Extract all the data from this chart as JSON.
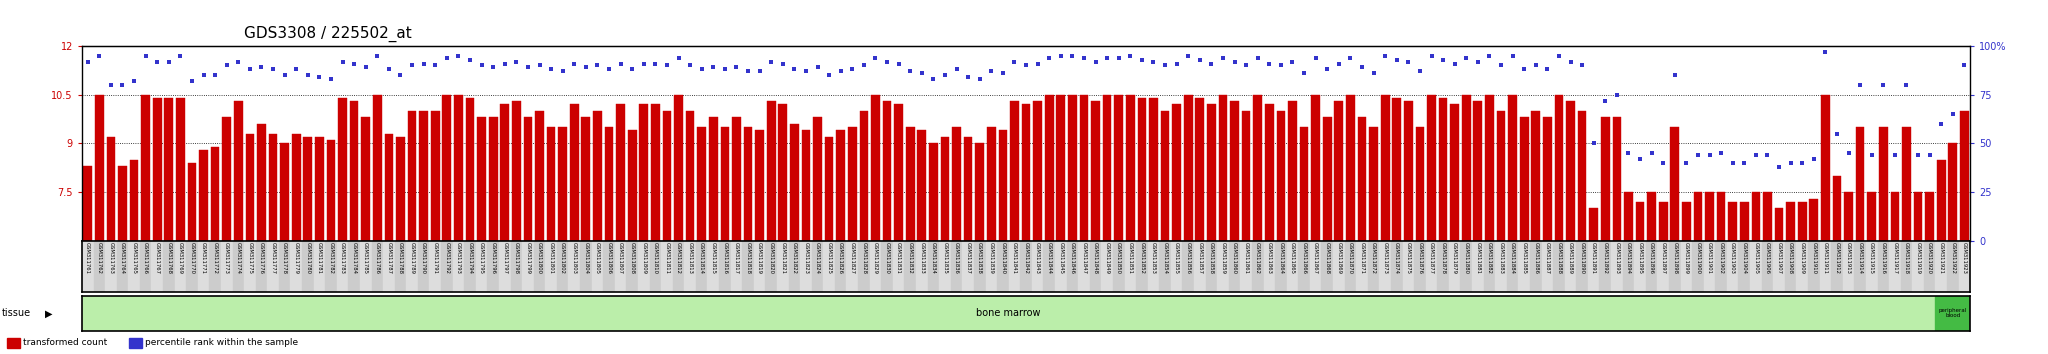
{
  "title": "GDS3308 / 225502_at",
  "title_fontsize": 11,
  "bar_color": "#cc0000",
  "dot_color": "#3333cc",
  "left_yaxis_label_color": "#cc0000",
  "right_yaxis_label_color": "#3333cc",
  "left_ylim": [
    6.0,
    12.0
  ],
  "left_yticks": [
    7.5,
    9.0,
    10.5,
    12.0
  ],
  "left_ytick_labels": [
    "7.5",
    "9",
    "10.5",
    "12"
  ],
  "right_ylim": [
    0,
    100
  ],
  "right_yticks": [
    0,
    25,
    50,
    75,
    100
  ],
  "right_ytick_labels": [
    "0",
    "25",
    "50",
    "75",
    "100%"
  ],
  "background_color": "#ffffff",
  "tissue_bar_color_main": "#bbeeaa",
  "tissue_bar_color_alt": "#44bb44",
  "tissue_label_main": "bone marrow",
  "tissue_label_alt": "peripheral\nblood",
  "xlabel_tissue": "tissue",
  "categories": [
    "GSM311761",
    "GSM311762",
    "GSM311763",
    "GSM311764",
    "GSM311765",
    "GSM311766",
    "GSM311767",
    "GSM311768",
    "GSM311769",
    "GSM311770",
    "GSM311771",
    "GSM311772",
    "GSM311773",
    "GSM311774",
    "GSM311775",
    "GSM311776",
    "GSM311777",
    "GSM311778",
    "GSM311779",
    "GSM311780",
    "GSM311781",
    "GSM311782",
    "GSM311783",
    "GSM311784",
    "GSM311785",
    "GSM311786",
    "GSM311787",
    "GSM311788",
    "GSM311789",
    "GSM311790",
    "GSM311791",
    "GSM311792",
    "GSM311793",
    "GSM311794",
    "GSM311795",
    "GSM311796",
    "GSM311797",
    "GSM311798",
    "GSM311799",
    "GSM311800",
    "GSM311801",
    "GSM311802",
    "GSM311803",
    "GSM311804",
    "GSM311805",
    "GSM311806",
    "GSM311807",
    "GSM311808",
    "GSM311809",
    "GSM311810",
    "GSM311811",
    "GSM311812",
    "GSM311813",
    "GSM311814",
    "GSM311815",
    "GSM311816",
    "GSM311817",
    "GSM311818",
    "GSM311819",
    "GSM311820",
    "GSM311821",
    "GSM311822",
    "GSM311823",
    "GSM311824",
    "GSM311825",
    "GSM311826",
    "GSM311827",
    "GSM311828",
    "GSM311829",
    "GSM311830",
    "GSM311831",
    "GSM311832",
    "GSM311833",
    "GSM311834",
    "GSM311835",
    "GSM311836",
    "GSM311837",
    "GSM311838",
    "GSM311839",
    "GSM311840",
    "GSM311841",
    "GSM311842",
    "GSM311843",
    "GSM311844",
    "GSM311845",
    "GSM311846",
    "GSM311847",
    "GSM311848",
    "GSM311849",
    "GSM311850",
    "GSM311851",
    "GSM311852",
    "GSM311853",
    "GSM311854",
    "GSM311855",
    "GSM311856",
    "GSM311857",
    "GSM311858",
    "GSM311859",
    "GSM311860",
    "GSM311861",
    "GSM311862",
    "GSM311863",
    "GSM311864",
    "GSM311865",
    "GSM311866",
    "GSM311867",
    "GSM311868",
    "GSM311869",
    "GSM311870",
    "GSM311871",
    "GSM311872",
    "GSM311873",
    "GSM311874",
    "GSM311875",
    "GSM311876",
    "GSM311877",
    "GSM311878",
    "GSM311879",
    "GSM311880",
    "GSM311881",
    "GSM311882",
    "GSM311883",
    "GSM311884",
    "GSM311885",
    "GSM311886",
    "GSM311887",
    "GSM311888",
    "GSM311889",
    "GSM311890",
    "GSM311891",
    "GSM311892",
    "GSM311893",
    "GSM311894",
    "GSM311895",
    "GSM311896",
    "GSM311897",
    "GSM311898",
    "GSM311899",
    "GSM311900",
    "GSM311901",
    "GSM311902",
    "GSM311903",
    "GSM311904",
    "GSM311905",
    "GSM311906",
    "GSM311907",
    "GSM311908",
    "GSM311909",
    "GSM311910",
    "GSM311911",
    "GSM311912",
    "GSM311913",
    "GSM311914",
    "GSM311915",
    "GSM311916",
    "GSM311917",
    "GSM311918",
    "GSM311919",
    "GSM311920",
    "GSM311921",
    "GSM311922",
    "GSM311923"
  ],
  "bar_values": [
    8.3,
    10.5,
    9.2,
    8.3,
    8.5,
    10.5,
    10.4,
    10.4,
    10.4,
    8.4,
    8.8,
    8.9,
    9.8,
    10.3,
    9.3,
    9.6,
    9.3,
    9.0,
    9.3,
    9.2,
    9.2,
    9.1,
    10.4,
    10.3,
    9.8,
    10.5,
    9.3,
    9.2,
    10.0,
    10.0,
    10.0,
    10.5,
    10.5,
    10.4,
    9.8,
    9.8,
    10.2,
    10.3,
    9.8,
    10.0,
    9.5,
    9.5,
    10.2,
    9.8,
    10.0,
    9.5,
    10.2,
    9.4,
    10.2,
    10.2,
    10.0,
    10.5,
    10.0,
    9.5,
    9.8,
    9.5,
    9.8,
    9.5,
    9.4,
    10.3,
    10.2,
    9.6,
    9.4,
    9.8,
    9.2,
    9.4,
    9.5,
    10.0,
    10.5,
    10.3,
    10.2,
    9.5,
    9.4,
    9.0,
    9.2,
    9.5,
    9.2,
    9.0,
    9.5,
    9.4,
    10.3,
    10.2,
    10.3,
    10.5,
    10.5,
    10.5,
    10.5,
    10.3,
    10.5,
    10.5,
    10.5,
    10.4,
    10.4,
    10.0,
    10.2,
    10.5,
    10.4,
    10.2,
    10.5,
    10.3,
    10.0,
    10.5,
    10.2,
    10.0,
    10.3,
    9.5,
    10.5,
    9.8,
    10.3,
    10.5,
    9.8,
    9.5,
    10.5,
    10.4,
    10.3,
    9.5,
    10.5,
    10.4,
    10.2,
    10.5,
    10.3,
    10.5,
    10.0,
    10.5,
    9.8,
    10.0,
    9.8,
    10.5,
    10.3,
    10.0,
    7.0,
    9.8,
    9.8,
    7.5,
    7.2,
    7.5,
    7.2,
    9.5,
    7.2,
    7.5,
    7.5,
    7.5,
    7.2,
    7.2,
    7.5,
    7.5,
    7.0,
    7.2,
    7.2,
    7.3,
    10.5,
    8.0,
    7.5,
    9.5,
    7.5,
    9.5,
    7.5,
    9.5,
    7.5,
    7.5,
    8.5,
    9.0,
    10.0
  ],
  "dot_values": [
    92,
    95,
    80,
    80,
    82,
    95,
    92,
    92,
    95,
    82,
    85,
    85,
    90,
    92,
    88,
    89,
    88,
    85,
    88,
    85,
    84,
    83,
    92,
    91,
    89,
    95,
    88,
    85,
    90,
    91,
    90,
    94,
    95,
    93,
    90,
    89,
    91,
    92,
    89,
    90,
    88,
    87,
    91,
    89,
    90,
    88,
    91,
    88,
    91,
    91,
    90,
    94,
    90,
    88,
    89,
    88,
    89,
    87,
    87,
    92,
    91,
    88,
    87,
    89,
    85,
    87,
    88,
    90,
    94,
    92,
    91,
    87,
    86,
    83,
    85,
    88,
    84,
    83,
    87,
    86,
    92,
    90,
    91,
    94,
    95,
    95,
    94,
    92,
    94,
    94,
    95,
    93,
    92,
    90,
    91,
    95,
    93,
    91,
    94,
    92,
    90,
    94,
    91,
    90,
    92,
    86,
    94,
    88,
    91,
    94,
    89,
    86,
    95,
    93,
    92,
    87,
    95,
    93,
    91,
    94,
    92,
    95,
    90,
    95,
    88,
    90,
    88,
    95,
    92,
    90,
    50,
    72,
    75,
    45,
    42,
    45,
    40,
    85,
    40,
    44,
    44,
    45,
    40,
    40,
    44,
    44,
    38,
    40,
    40,
    42,
    97,
    55,
    45,
    80,
    44,
    80,
    44,
    80,
    44,
    44,
    60,
    65,
    90
  ],
  "n_bone_marrow": 160,
  "n_total": 163,
  "legend_items": [
    {
      "label": "transformed count",
      "color": "#cc0000"
    },
    {
      "label": "percentile rank within the sample",
      "color": "#3333cc"
    }
  ]
}
